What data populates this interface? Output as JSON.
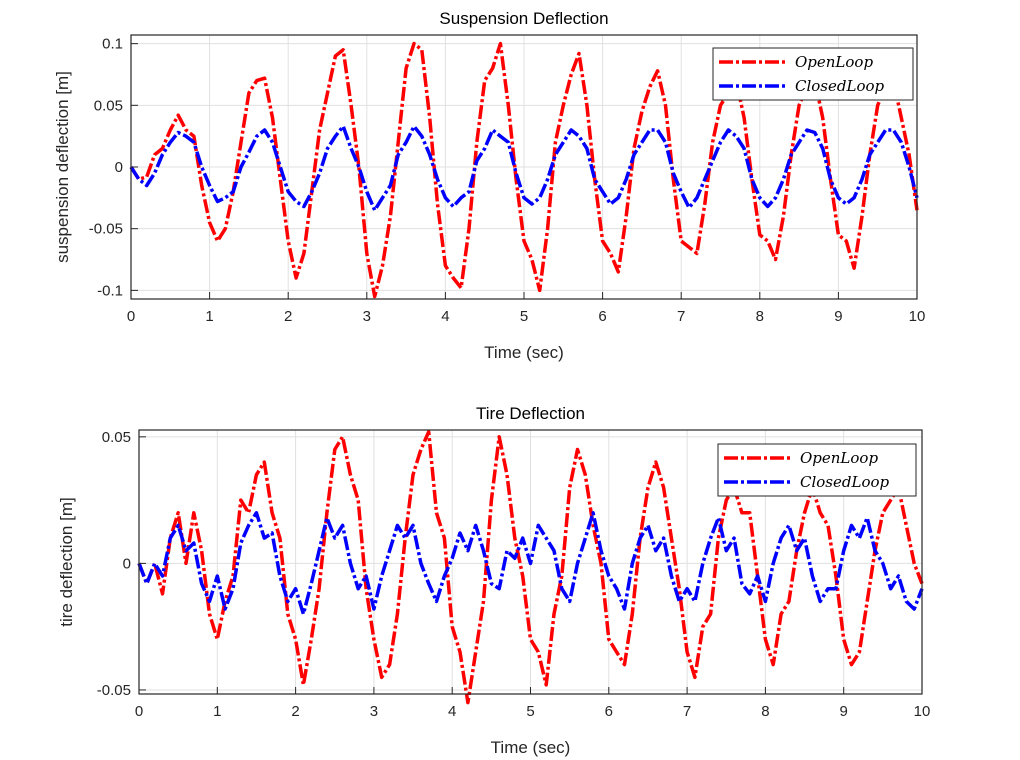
{
  "colors": {
    "open": "#ff0000",
    "closed": "#0000ff",
    "grid": "#e0e0e0",
    "axis": "#262626"
  },
  "chart_data": [
    {
      "type": "line",
      "title": "Suspension Deflection",
      "xlabel": "Time (sec)",
      "ylabel": "suspension deflection [m]",
      "xlim": [
        0,
        10
      ],
      "ylim": [
        -0.107,
        0.107
      ],
      "xticks": [
        "0",
        "1",
        "2",
        "3",
        "4",
        "5",
        "6",
        "7",
        "8",
        "9",
        "10"
      ],
      "yticks": [
        {
          "v": 0.1,
          "label": "0.1"
        },
        {
          "v": 0.05,
          "label": "0.05"
        },
        {
          "v": 0,
          "label": "0"
        },
        {
          "v": -0.05,
          "label": "-0.05"
        },
        {
          "v": -0.1,
          "label": "-0.1"
        }
      ],
      "grid": true,
      "legend_position": "top-right",
      "x_step": 0.1,
      "series": [
        {
          "name": "OpenLoop",
          "color": "#ff0000",
          "values": [
            0,
            -0.01,
            -0.008,
            0.01,
            0.015,
            0.03,
            0.042,
            0.03,
            0.025,
            -0.015,
            -0.045,
            -0.06,
            -0.05,
            -0.02,
            0.02,
            0.06,
            0.07,
            0.072,
            0.04,
            -0.01,
            -0.06,
            -0.09,
            -0.07,
            -0.02,
            0.03,
            0.06,
            0.09,
            0.095,
            0.05,
            0.0,
            -0.07,
            -0.105,
            -0.08,
            -0.04,
            0.02,
            0.08,
            0.1,
            0.095,
            0.04,
            -0.03,
            -0.08,
            -0.09,
            -0.098,
            -0.05,
            0.02,
            0.07,
            0.08,
            0.1,
            0.05,
            -0.01,
            -0.06,
            -0.075,
            -0.1,
            -0.05,
            0.02,
            0.05,
            0.075,
            0.092,
            0.05,
            -0.01,
            -0.06,
            -0.07,
            -0.085,
            -0.04,
            0.015,
            0.045,
            0.065,
            0.078,
            0.05,
            -0.01,
            -0.06,
            -0.065,
            -0.07,
            -0.03,
            0.02,
            0.05,
            0.06,
            0.07,
            0.04,
            -0.01,
            -0.055,
            -0.06,
            -0.075,
            -0.04,
            0.01,
            0.05,
            0.065,
            0.07,
            0.04,
            -0.01,
            -0.055,
            -0.06,
            -0.082,
            -0.04,
            0.01,
            0.05,
            0.065,
            0.07,
            0.04,
            0.01,
            -0.035
          ]
        },
        {
          "name": "ClosedLoop",
          "color": "#0000ff",
          "values": [
            0,
            -0.01,
            -0.015,
            -0.005,
            0.01,
            0.02,
            0.028,
            0.025,
            0.02,
            0.0,
            -0.015,
            -0.028,
            -0.025,
            -0.02,
            0.0,
            0.012,
            0.025,
            0.03,
            0.02,
            0.0,
            -0.02,
            -0.028,
            -0.032,
            -0.02,
            -0.005,
            0.015,
            0.025,
            0.033,
            0.015,
            0.0,
            -0.02,
            -0.035,
            -0.025,
            -0.015,
            0.01,
            0.02,
            0.033,
            0.025,
            0.01,
            -0.01,
            -0.025,
            -0.032,
            -0.025,
            -0.02,
            0.005,
            0.015,
            0.03,
            0.025,
            0.02,
            -0.005,
            -0.025,
            -0.03,
            -0.025,
            -0.01,
            0.01,
            0.02,
            0.03,
            0.025,
            0.015,
            -0.01,
            -0.02,
            -0.03,
            -0.025,
            -0.01,
            0.01,
            0.02,
            0.03,
            0.03,
            0.02,
            -0.005,
            -0.02,
            -0.033,
            -0.025,
            -0.01,
            0.005,
            0.02,
            0.03,
            0.025,
            0.015,
            -0.01,
            -0.025,
            -0.032,
            -0.025,
            -0.01,
            0.01,
            0.02,
            0.03,
            0.028,
            0.015,
            -0.01,
            -0.025,
            -0.03,
            -0.025,
            -0.01,
            0.01,
            0.02,
            0.03,
            0.03,
            0.02,
            0.0,
            -0.025
          ]
        }
      ]
    },
    {
      "type": "line",
      "title": "Tire Deflection",
      "xlabel": "Time (sec)",
      "ylabel": "tire deflection [m]",
      "xlim": [
        0,
        10
      ],
      "ylim": [
        -0.0516,
        0.0527
      ],
      "xticks": [
        "0",
        "1",
        "2",
        "3",
        "4",
        "5",
        "6",
        "7",
        "8",
        "9",
        "10"
      ],
      "yticks": [
        {
          "v": 0.05,
          "label": "0.05"
        },
        {
          "v": 0,
          "label": "0"
        },
        {
          "v": -0.05,
          "label": "-0.05"
        }
      ],
      "grid": true,
      "legend_position": "top-right",
      "x_step": 0.1,
      "series": [
        {
          "name": "OpenLoop",
          "color": "#ff0000",
          "values": [
            0,
            -0.008,
            0.0,
            -0.012,
            0.01,
            0.02,
            0.0,
            0.02,
            0.005,
            -0.02,
            -0.03,
            -0.015,
            -0.005,
            0.025,
            0.02,
            0.035,
            0.04,
            0.02,
            0.01,
            -0.02,
            -0.03,
            -0.048,
            -0.03,
            -0.01,
            0.02,
            0.045,
            0.05,
            0.035,
            0.025,
            -0.01,
            -0.03,
            -0.045,
            -0.04,
            -0.02,
            0.01,
            0.035,
            0.045,
            0.052,
            0.02,
            0.01,
            -0.025,
            -0.035,
            -0.055,
            -0.035,
            -0.015,
            0.025,
            0.05,
            0.035,
            0.01,
            -0.005,
            -0.03,
            -0.035,
            -0.048,
            -0.02,
            -0.005,
            0.03,
            0.045,
            0.035,
            0.015,
            0.0,
            -0.03,
            -0.035,
            -0.04,
            -0.02,
            0.01,
            0.03,
            0.04,
            0.03,
            0.01,
            -0.01,
            -0.035,
            -0.045,
            -0.025,
            -0.02,
            0.01,
            0.025,
            0.03,
            0.02,
            0.02,
            -0.005,
            -0.03,
            -0.04,
            -0.02,
            -0.015,
            0.005,
            0.02,
            0.03,
            0.02,
            0.015,
            -0.005,
            -0.03,
            -0.04,
            -0.035,
            -0.015,
            0.005,
            0.02,
            0.025,
            0.03,
            0.015,
            0.0,
            -0.008
          ]
        },
        {
          "name": "ClosedLoop",
          "color": "#0000ff",
          "values": [
            0,
            -0.008,
            0.0,
            -0.005,
            0.01,
            0.015,
            0.005,
            0.008,
            -0.008,
            -0.015,
            -0.005,
            -0.018,
            -0.01,
            0.008,
            0.015,
            0.02,
            0.01,
            0.012,
            -0.005,
            -0.015,
            -0.01,
            -0.02,
            -0.008,
            0.005,
            0.018,
            0.01,
            0.015,
            0.0,
            -0.01,
            -0.005,
            -0.018,
            -0.005,
            0.005,
            0.015,
            0.01,
            0.015,
            0.0,
            -0.008,
            -0.015,
            -0.005,
            0.002,
            0.012,
            0.005,
            0.015,
            0.005,
            -0.008,
            -0.01,
            0.005,
            0.002,
            0.01,
            0.0,
            0.015,
            0.01,
            0.005,
            -0.01,
            -0.015,
            0.0,
            0.01,
            0.02,
            0.005,
            -0.005,
            -0.01,
            -0.018,
            0.0,
            0.01,
            0.015,
            0.005,
            0.01,
            -0.005,
            -0.015,
            -0.01,
            -0.015,
            0.0,
            0.01,
            0.018,
            0.005,
            0.01,
            -0.008,
            -0.012,
            -0.005,
            -0.015,
            0.0,
            0.01,
            0.015,
            0.005,
            0.01,
            -0.005,
            -0.015,
            -0.01,
            -0.01,
            0.005,
            0.015,
            0.01,
            0.018,
            0.005,
            0.0,
            -0.01,
            -0.005,
            -0.015,
            -0.018,
            -0.01
          ]
        }
      ]
    }
  ]
}
